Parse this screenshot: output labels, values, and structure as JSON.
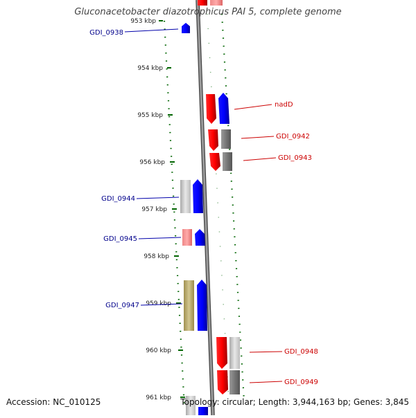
{
  "title": "Gluconacetobacter diazotrophicus PAI 5, complete genome",
  "accession": "Accession: NC_010125",
  "topology": "Topology: circular; Length: 3,944,163 bp; Genes: 3,845",
  "top_partial_label": "953 kbp",
  "ticks": [
    "954 kbp",
    "955 kbp",
    "956 kbp",
    "957 kbp",
    "958 kbp",
    "959 kbp",
    "960 kbp",
    "961 kbp"
  ],
  "genes": [
    "GDI_0938",
    "nadD",
    "GDI_0942",
    "GDI_0943",
    "GDI_0944",
    "GDI_0945",
    "GDI_0947",
    "GDI_0948",
    "GDI_0949"
  ],
  "colors": {
    "forward": "#0000ff",
    "reverse": "#ff0000",
    "label_forward": "#00008b",
    "label_reverse": "#cc0000",
    "tick": "#006400",
    "backbone": "#888888"
  }
}
